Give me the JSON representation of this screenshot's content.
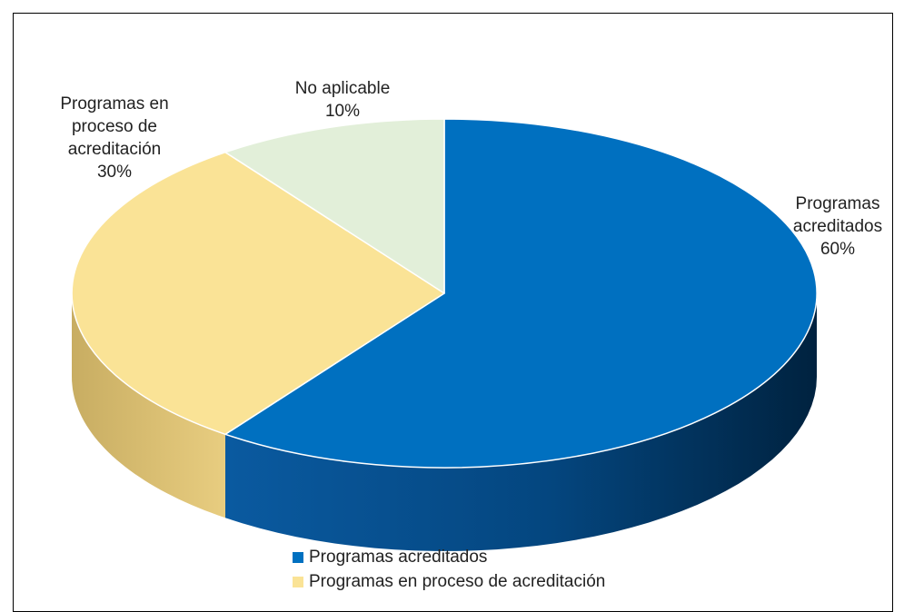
{
  "chart_data": {
    "type": "pie",
    "style": "3d",
    "title": "",
    "slices": [
      {
        "label": "Programas acreditados",
        "value": 60,
        "display": "60%",
        "color": "#0070c0"
      },
      {
        "label": "Programas en proceso de acreditación",
        "value": 30,
        "display": "30%",
        "color": "#fae396"
      },
      {
        "label": "No aplicable",
        "value": 10,
        "display": "10%",
        "color": "#e2efd9"
      }
    ],
    "data_labels": [
      {
        "lines": [
          "Programas",
          "acreditados"
        ],
        "value": "60%"
      },
      {
        "lines": [
          "Programas en",
          "proceso de",
          "acreditación"
        ],
        "value": "30%"
      },
      {
        "lines": [
          "No aplicable"
        ],
        "value": "10%"
      }
    ],
    "legend": {
      "position": "bottom",
      "items": [
        "Programas acreditados",
        "Programas en proceso de acreditación"
      ]
    }
  }
}
